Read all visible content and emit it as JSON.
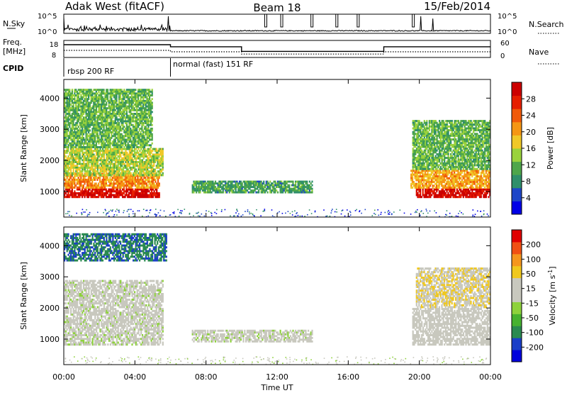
{
  "header": {
    "title_left": "Adak West (fitACF)",
    "title_center": "Beam 18",
    "title_right": "15/Feb/2014"
  },
  "noise_panel": {
    "left_label": "N.Sky",
    "right_label": "N.Search",
    "tick_labels": [
      "10^5",
      "10^0"
    ]
  },
  "freq_panel": {
    "left_label_1": "Freq.",
    "left_label_2": "[MHz]",
    "left_ticks": [
      "18",
      "8"
    ],
    "right_label": "Nave",
    "right_ticks": [
      "60",
      "0"
    ]
  },
  "cpid": {
    "label": "CPID",
    "programs": [
      {
        "name": "rbsp 200 RF",
        "start_hour": 0
      },
      {
        "name": "normal (fast) 151 RF",
        "start_hour": 6
      }
    ]
  },
  "colors": {
    "power": [
      "#0000e6",
      "#1e46c8",
      "#2f8f6a",
      "#4ea64a",
      "#9ad23c",
      "#f0c828",
      "#f59614",
      "#f05a0a",
      "#e61e00",
      "#cc0000"
    ],
    "velocity": [
      "#0000dc",
      "#1a3ec8",
      "#2a8a50",
      "#47b230",
      "#8ed23c",
      "#c8c8be",
      "#c8c8be",
      "#f0c81e",
      "#f5961e",
      "#f05014",
      "#e00000"
    ],
    "ground_scatter": "#c8c8be"
  },
  "chart_data": [
    {
      "type": "line",
      "title": "",
      "ylabel": "",
      "y_scale": "log",
      "ylim": [
        1,
        100000
      ],
      "series": [
        {
          "name": "N.Sky",
          "values": "noise trace between 10^0 and 10^5 with spikes"
        }
      ]
    },
    {
      "type": "line",
      "ylabel": "Freq. [MHz]",
      "ylim": [
        8,
        18
      ],
      "y2label": "Nave",
      "y2lim": [
        0,
        60
      ],
      "series": [
        {
          "name": "Freq.",
          "x": [
            0,
            6,
            6,
            10,
            10,
            18,
            18,
            24
          ],
          "values": [
            15.5,
            15.5,
            14.3,
            14.3,
            11.6,
            11.6,
            14.3,
            14.3
          ]
        },
        {
          "name": "Nave",
          "x": [
            0,
            6,
            6,
            10,
            10,
            18,
            18,
            24
          ],
          "values": [
            25,
            25,
            20,
            20,
            12,
            12,
            20,
            20
          ]
        }
      ]
    },
    {
      "type": "heatmap",
      "ylabel": "Slant Range [km]",
      "xlim": [
        0,
        24
      ],
      "ylim": [
        180,
        4600
      ],
      "yticks": [
        1000,
        2000,
        3000,
        4000
      ],
      "colorbar": {
        "label": "Power [dB]",
        "ticks": [
          4,
          8,
          12,
          16,
          20,
          24,
          28
        ],
        "range": [
          0,
          32
        ]
      },
      "regions": [
        {
          "x": [
            0,
            5.4
          ],
          "y": [
            800,
            1100
          ],
          "value": 30
        },
        {
          "x": [
            0,
            5.4
          ],
          "y": [
            1100,
            1600
          ],
          "value": 21
        },
        {
          "x": [
            0,
            5.6
          ],
          "y": [
            1500,
            2400
          ],
          "value": 15
        },
        {
          "x": [
            0,
            5.0
          ],
          "y": [
            2400,
            4300
          ],
          "value": 12
        },
        {
          "x": [
            7.2,
            14.0
          ],
          "y": [
            950,
            1350
          ],
          "value": 10
        },
        {
          "x": [
            19.8,
            24
          ],
          "y": [
            800,
            1100
          ],
          "value": 30
        },
        {
          "x": [
            19.5,
            24
          ],
          "y": [
            1100,
            1700
          ],
          "value": 20
        },
        {
          "x": [
            19.6,
            24
          ],
          "y": [
            1700,
            3300
          ],
          "value": 12
        }
      ]
    },
    {
      "type": "heatmap",
      "ylabel": "Slant Range [km]",
      "xlim": [
        0,
        24
      ],
      "ylim": [
        180,
        4600
      ],
      "yticks": [
        1000,
        2000,
        3000,
        4000
      ],
      "colorbar": {
        "label": "Velocity [m s^-1]",
        "ticks": [
          200,
          100,
          50,
          15,
          -15,
          -50,
          -100,
          -200
        ],
        "range": [
          -250,
          250
        ]
      },
      "regions": [
        {
          "x": [
            0,
            5.6
          ],
          "y": [
            800,
            2900
          ],
          "value": 0
        },
        {
          "x": [
            0,
            5.8
          ],
          "y": [
            3500,
            4400
          ],
          "value": -150
        },
        {
          "x": [
            7.2,
            14.0
          ],
          "y": [
            900,
            1300
          ],
          "value": 0
        },
        {
          "x": [
            19.6,
            24
          ],
          "y": [
            800,
            2000
          ],
          "value": 20
        },
        {
          "x": [
            19.8,
            24
          ],
          "y": [
            2000,
            3300
          ],
          "value": 60
        }
      ]
    }
  ],
  "x_axis": {
    "label": "Time UT",
    "ticks": [
      "00:00",
      "04:00",
      "08:00",
      "12:00",
      "16:00",
      "20:00",
      "00:00"
    ]
  }
}
